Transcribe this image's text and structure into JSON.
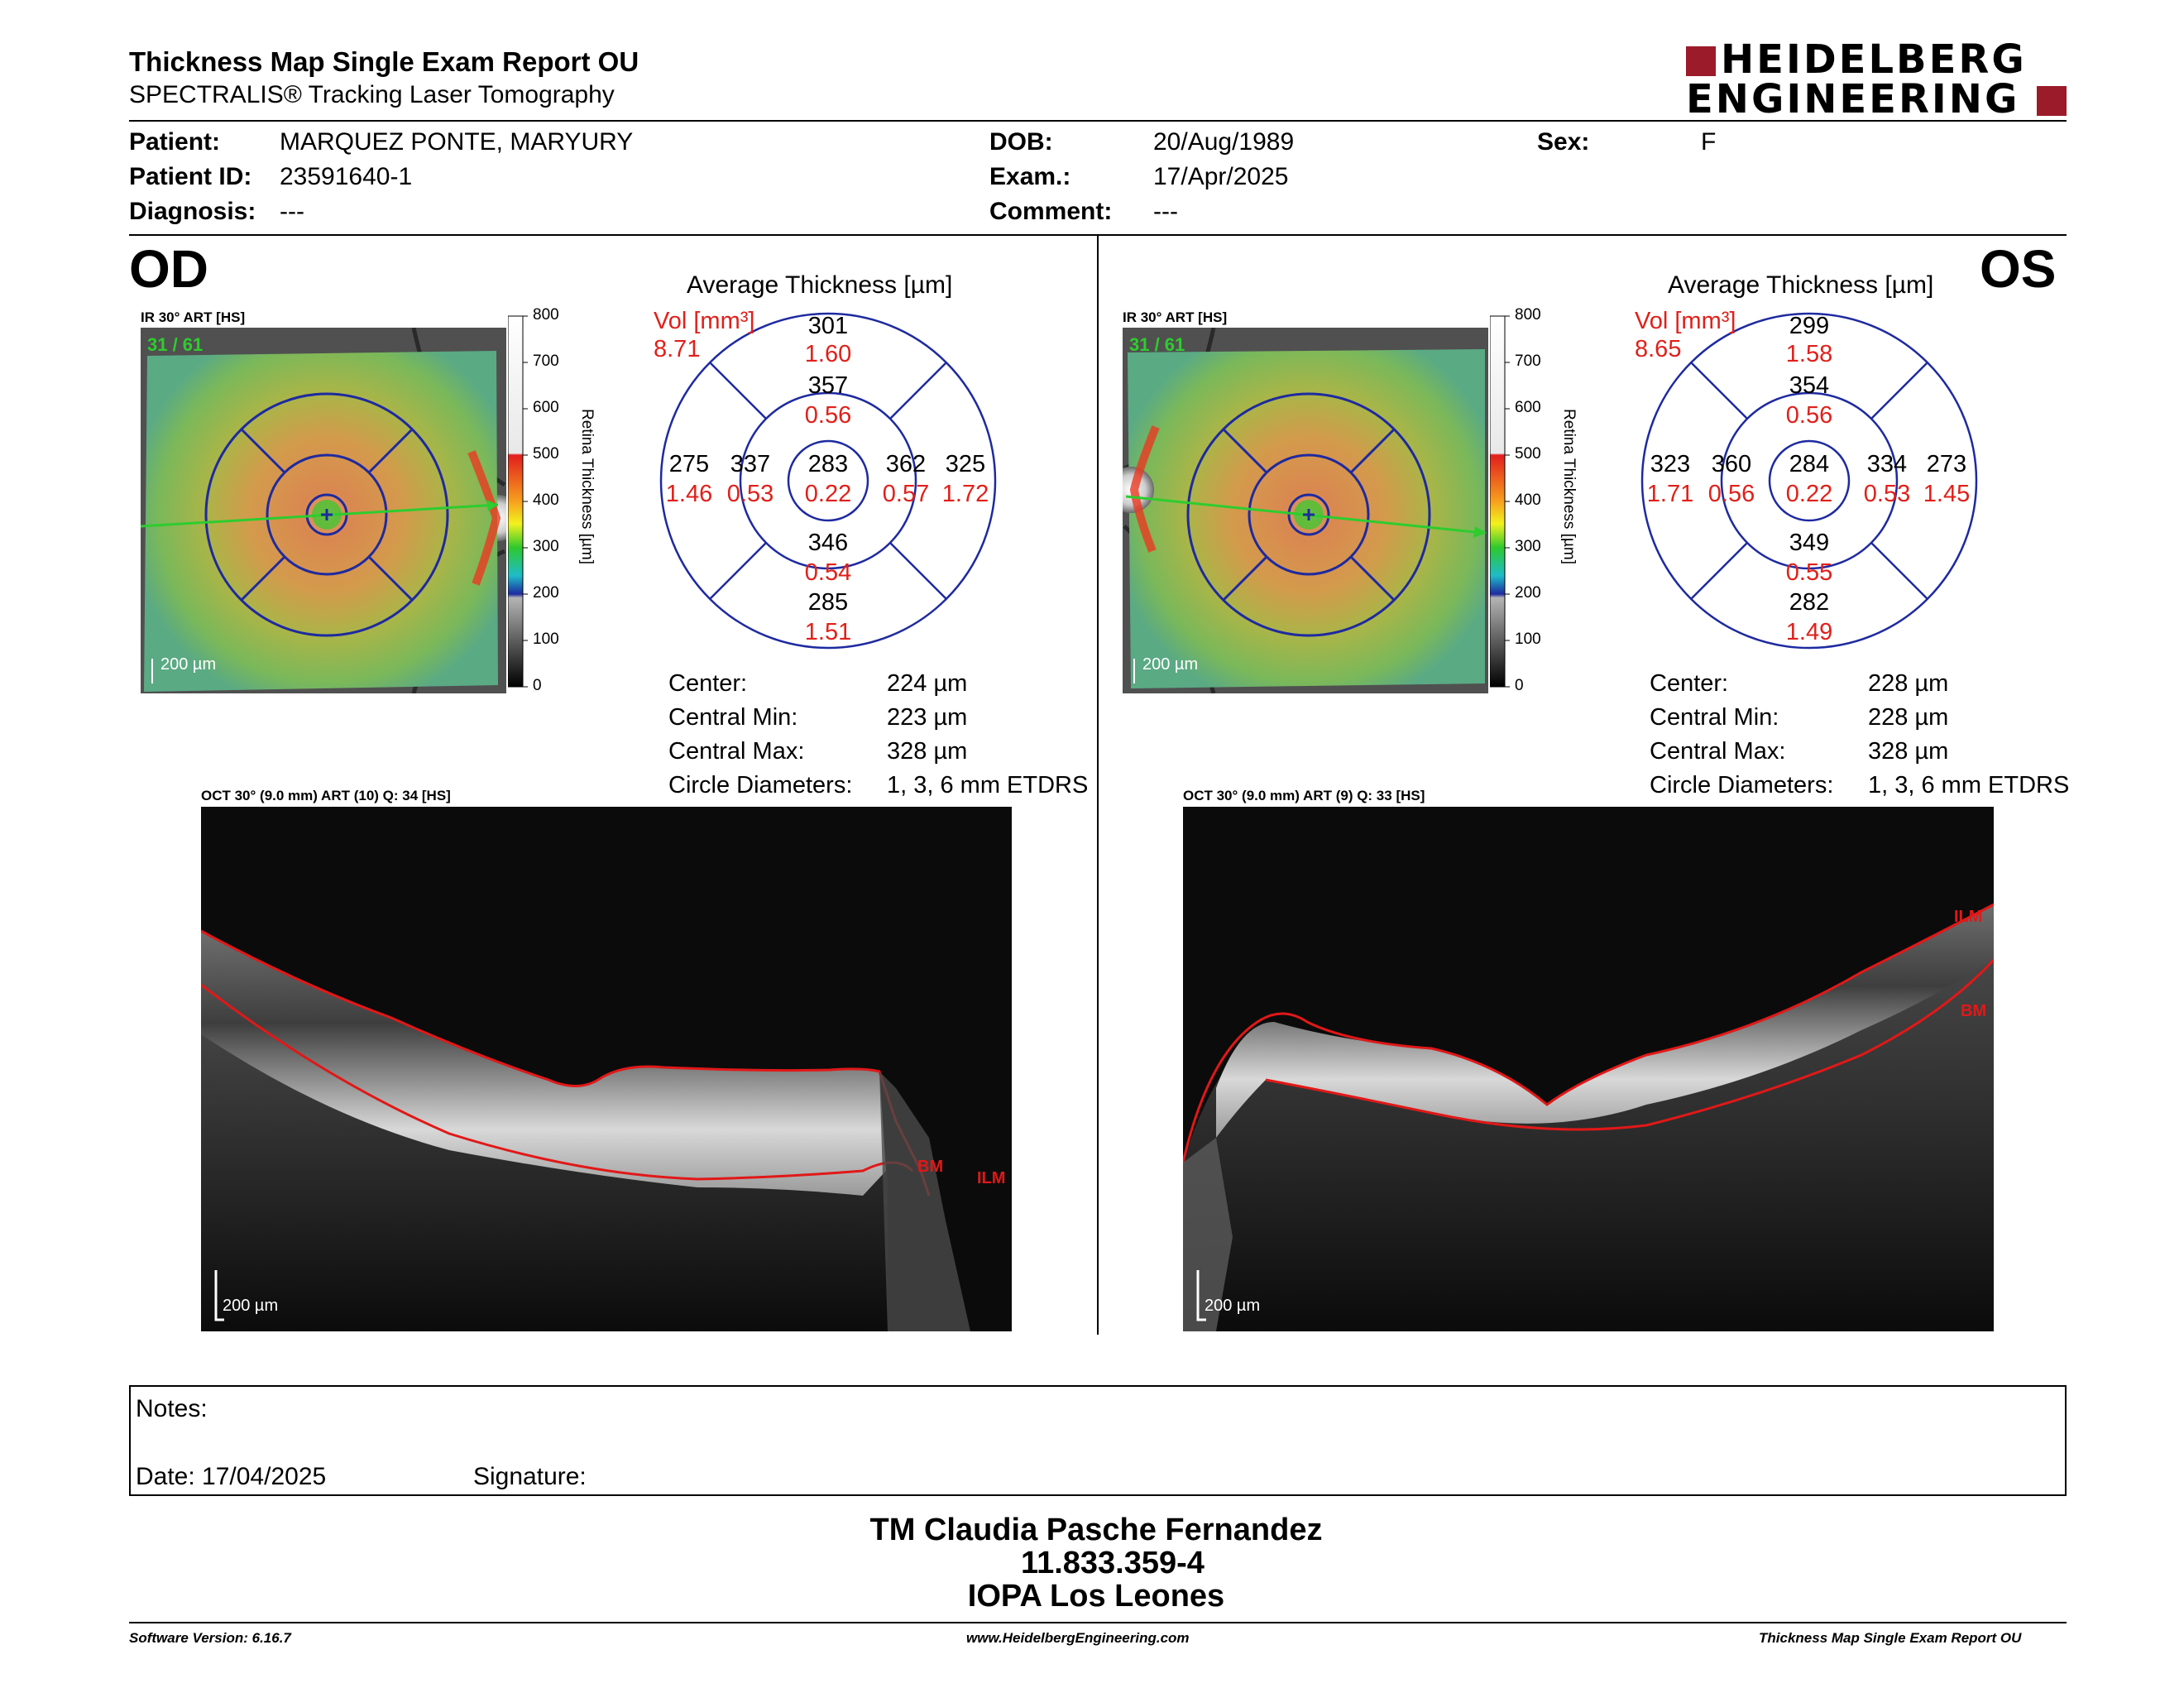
{
  "header": {
    "title": "Thickness Map Single Exam Report OU",
    "subtitle": "SPECTRALIS® Tracking Laser Tomography",
    "logo_line1": "HEIDELBERG",
    "logo_line2": "ENGINEERING"
  },
  "patient": {
    "patient_label": "Patient:",
    "patient_value": "MARQUEZ PONTE, MARYURY",
    "id_label": "Patient ID:",
    "id_value": "23591640-1",
    "diag_label": "Diagnosis:",
    "diag_value": "---",
    "dob_label": "DOB:",
    "dob_value": "20/Aug/1989",
    "exam_label": "Exam.:",
    "exam_value": "17/Apr/2025",
    "comment_label": "Comment:",
    "comment_value": "---",
    "sex_label": "Sex:",
    "sex_value": "F"
  },
  "od": {
    "eye": "OD",
    "ir_label": "IR 30° ART [HS]",
    "frames": "31 / 61",
    "scale": "200 µm",
    "avg_title": "Average Thickness [µm]",
    "vol_label": "Vol [mm³]",
    "vol_value": "8.71",
    "outer_sup": "301",
    "outer_sup_vol": "1.60",
    "inner_sup": "357",
    "inner_sup_vol": "0.56",
    "outer_temp": "275",
    "outer_temp_vol": "1.46",
    "inner_temp": "337",
    "inner_temp_vol": "0.53",
    "center": "283",
    "center_vol": "0.22",
    "inner_nas": "362",
    "inner_nas_vol": "0.57",
    "outer_nas": "325",
    "outer_nas_vol": "1.72",
    "inner_inf": "346",
    "inner_inf_vol": "0.54",
    "outer_inf": "285",
    "outer_inf_vol": "1.51",
    "stats": {
      "center_label": "Center:",
      "center_value": "224 µm",
      "min_label": "Central Min:",
      "min_value": "223 µm",
      "max_label": "Central Max:",
      "max_value": "328 µm",
      "diam_label": "Circle Diameters:",
      "diam_value": "1, 3, 6 mm ETDRS"
    },
    "oct_label": "OCT 30° (9.0 mm) ART (10) Q: 34 [HS]",
    "oct_scale": "200 µm",
    "tag_bm": "BM",
    "tag_ilm": "ILM"
  },
  "os": {
    "eye": "OS",
    "ir_label": "IR 30° ART [HS]",
    "frames": "31 / 61",
    "scale": "200 µm",
    "avg_title": "Average Thickness [µm]",
    "vol_label": "Vol [mm³]",
    "vol_value": "8.65",
    "outer_sup": "299",
    "outer_sup_vol": "1.58",
    "inner_sup": "354",
    "inner_sup_vol": "0.56",
    "outer_temp": "323",
    "outer_temp_vol": "1.71",
    "inner_temp": "360",
    "inner_temp_vol": "0.56",
    "center": "284",
    "center_vol": "0.22",
    "inner_nas": "334",
    "inner_nas_vol": "0.53",
    "outer_nas": "273",
    "outer_nas_vol": "1.45",
    "inner_inf": "349",
    "inner_inf_vol": "0.55",
    "outer_inf": "282",
    "outer_inf_vol": "1.49",
    "stats": {
      "center_label": "Center:",
      "center_value": "228 µm",
      "min_label": "Central Min:",
      "min_value": "228 µm",
      "max_label": "Central Max:",
      "max_value": "328 µm",
      "diam_label": "Circle Diameters:",
      "diam_value": "1, 3, 6 mm ETDRS"
    },
    "oct_label": "OCT 30° (9.0 mm) ART (9) Q: 33 [HS]",
    "oct_scale": "200 µm",
    "tag_bm": "BM",
    "tag_ilm": "ILM"
  },
  "colorbar": {
    "ticks": [
      "800",
      "700",
      "600",
      "500",
      "400",
      "300",
      "200",
      "100",
      "0"
    ],
    "label": "Retina Thickness [µm]"
  },
  "notes": {
    "notes_label": "Notes:",
    "date_label": "Date: 17/04/2025",
    "signature_label": "Signature:"
  },
  "signature": {
    "name": "TM Claudia Pasche Fernandez",
    "id": "11.833.359-4",
    "org": "IOPA Los Leones"
  },
  "footer": {
    "version": "Software Version: 6.16.7",
    "website": "www.HeidelbergEngineering.com",
    "report": "Thickness Map Single Exam Report OU"
  },
  "colors": {
    "circle_blue": "#1e2aa0",
    "volume_red": "#e0201a",
    "logo_red": "#9b1b2a",
    "frame_green": "#2ecc2e"
  }
}
